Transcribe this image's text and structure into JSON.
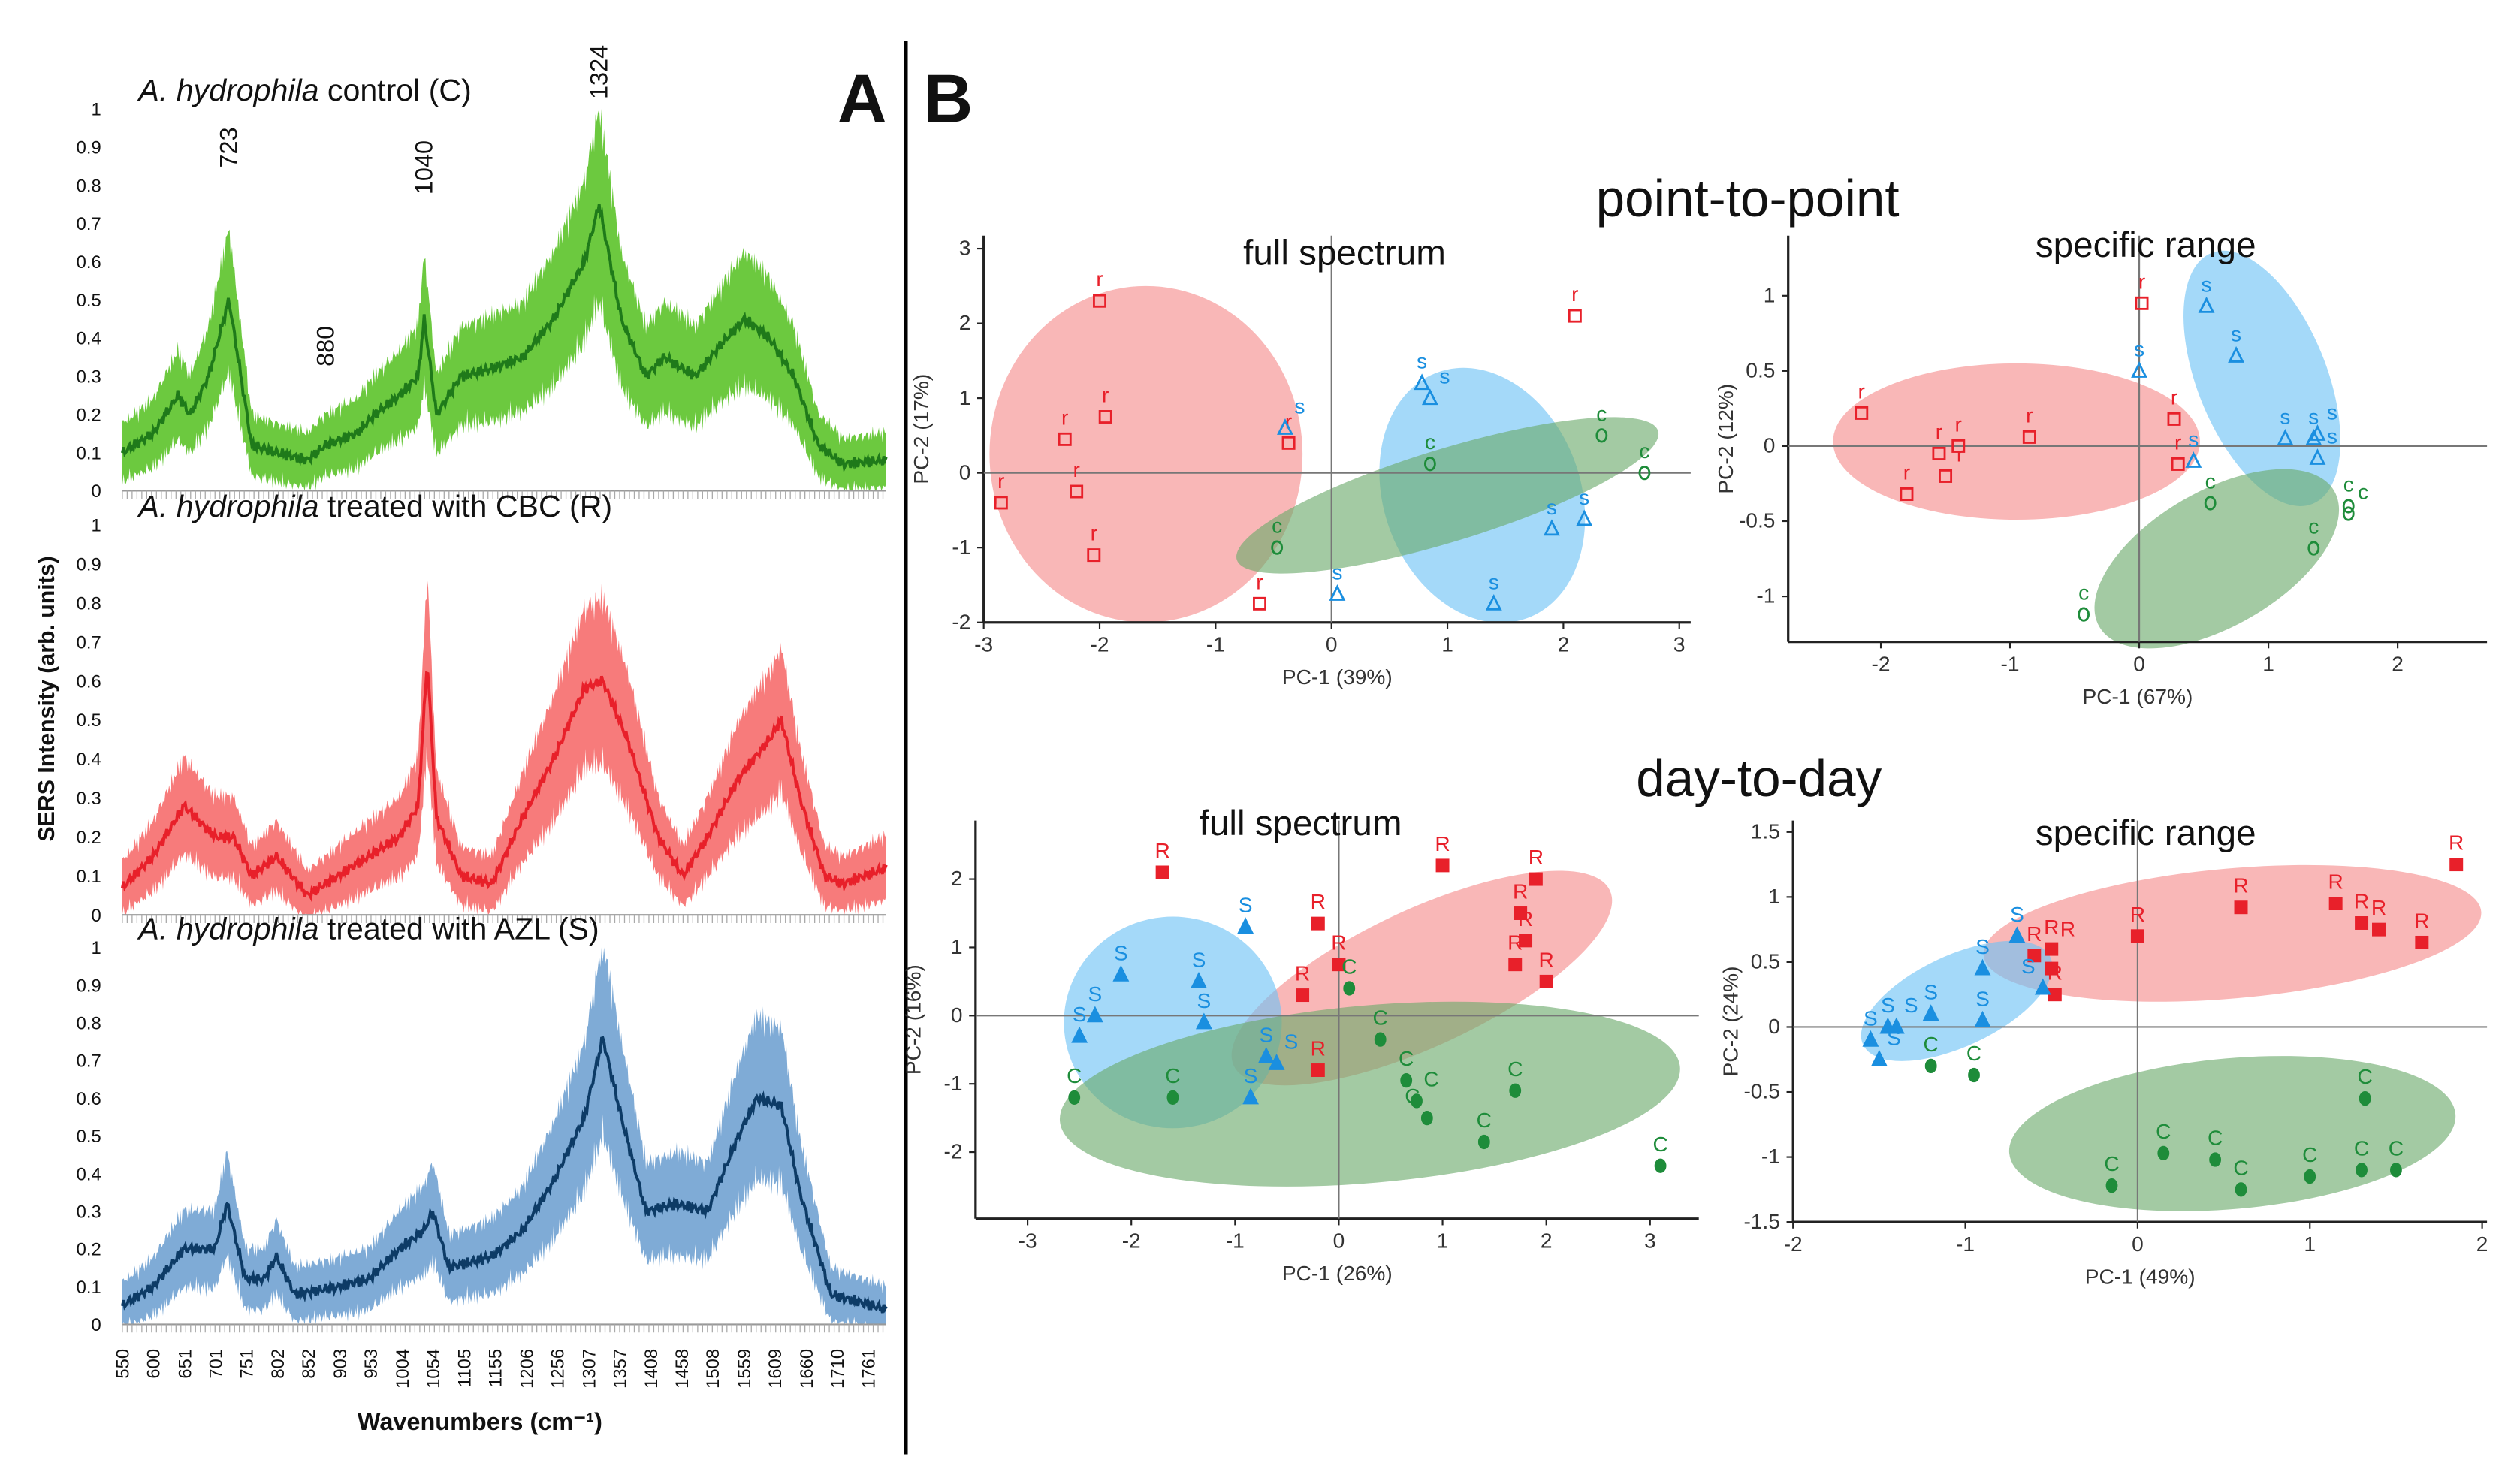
{
  "chart_data": [
    {
      "type": "area",
      "panel": "A",
      "ylabel": "SERS Intensity (arb. units)",
      "xlabel": "Wavenumbers (cm⁻¹)",
      "x_ticks": [
        550,
        600,
        651,
        701,
        751,
        802,
        852,
        903,
        953,
        1004,
        1054,
        1105,
        1155,
        1206,
        1256,
        1307,
        1357,
        1408,
        1458,
        1508,
        1559,
        1609,
        1660,
        1710,
        1761
      ],
      "xlim": [
        550,
        1790
      ],
      "ylim": [
        0,
        1
      ],
      "y_ticks": [
        "0",
        "0.1",
        "0.2",
        "0.3",
        "0.4",
        "0.5",
        "0.6",
        "0.7",
        "0.8",
        "0.9",
        "1"
      ],
      "series": [
        {
          "name": "C",
          "title_italic": "A. hydrophila",
          "title_rest": " control (C)",
          "band_color": "#6cc93f",
          "line_color": "#1f7a1a",
          "peaks": [
            "723",
            "880",
            "1040",
            "1324"
          ],
          "peak_x": [
            723,
            880,
            1040,
            1324
          ],
          "peak_y": [
            0.82,
            0.3,
            0.75,
            1.0
          ],
          "x": [
            550,
            600,
            640,
            660,
            690,
            723,
            760,
            800,
            850,
            880,
            930,
            960,
            1000,
            1030,
            1040,
            1060,
            1100,
            1150,
            1200,
            1250,
            1300,
            1324,
            1360,
            1400,
            1430,
            1480,
            1520,
            1560,
            1600,
            1640,
            1680,
            1720,
            1790
          ],
          "mean": [
            0.1,
            0.15,
            0.25,
            0.2,
            0.3,
            0.5,
            0.12,
            0.1,
            0.08,
            0.12,
            0.15,
            0.2,
            0.25,
            0.3,
            0.45,
            0.2,
            0.3,
            0.32,
            0.35,
            0.45,
            0.6,
            0.75,
            0.45,
            0.3,
            0.35,
            0.3,
            0.38,
            0.45,
            0.4,
            0.3,
            0.12,
            0.07,
            0.08
          ]
        },
        {
          "name": "R",
          "title_italic": "A. hydrophila",
          "title_rest": " treated with CBC (R)",
          "band_color": "#f77b7b",
          "line_color": "#e8202a",
          "x": [
            550,
            600,
            650,
            700,
            730,
            760,
            800,
            850,
            900,
            950,
            1000,
            1030,
            1045,
            1060,
            1100,
            1150,
            1200,
            1250,
            1300,
            1330,
            1370,
            1420,
            1460,
            1500,
            1550,
            1600,
            1620,
            1650,
            1690,
            1720,
            1790
          ],
          "mean": [
            0.07,
            0.15,
            0.28,
            0.2,
            0.2,
            0.1,
            0.15,
            0.05,
            0.1,
            0.15,
            0.2,
            0.28,
            0.65,
            0.25,
            0.1,
            0.08,
            0.25,
            0.4,
            0.58,
            0.6,
            0.45,
            0.2,
            0.1,
            0.2,
            0.35,
            0.45,
            0.5,
            0.3,
            0.1,
            0.08,
            0.12
          ]
        },
        {
          "name": "S",
          "title_italic": "A. hydrophila",
          "title_rest": " treated with AZL (S)",
          "band_color": "#7fabd6",
          "line_color": "#0d3b66",
          "x": [
            550,
            600,
            650,
            700,
            720,
            750,
            780,
            800,
            830,
            900,
            950,
            1000,
            1040,
            1054,
            1080,
            1150,
            1200,
            1250,
            1300,
            1330,
            1360,
            1400,
            1450,
            1500,
            1550,
            1580,
            1620,
            1650,
            1700,
            1790
          ],
          "mean": [
            0.05,
            0.1,
            0.2,
            0.2,
            0.32,
            0.12,
            0.12,
            0.18,
            0.08,
            0.1,
            0.12,
            0.2,
            0.25,
            0.3,
            0.15,
            0.18,
            0.25,
            0.38,
            0.55,
            0.76,
            0.55,
            0.3,
            0.32,
            0.3,
            0.5,
            0.6,
            0.58,
            0.35,
            0.08,
            0.04
          ]
        }
      ]
    },
    {
      "type": "scatter",
      "panel": "B",
      "group": "point-to-point",
      "title": "full spectrum",
      "xlabel": "PC-1 (39%)",
      "ylabel": "PC-2 (17%)",
      "xlim": [
        -3,
        3
      ],
      "ylim": [
        -2,
        3
      ],
      "x_ticks": [
        -3,
        -2,
        -1,
        0,
        1,
        2,
        3
      ],
      "y_ticks": [
        -2,
        -1,
        0,
        1,
        2,
        3
      ],
      "filled": false,
      "groups": [
        {
          "label": "r",
          "marker": "square",
          "color": "#e8202a",
          "points": [
            [
              -2,
              2.3
            ],
            [
              -1.95,
              0.75
            ],
            [
              -2.3,
              0.45
            ],
            [
              -2.2,
              -0.25
            ],
            [
              -2.85,
              -0.4
            ],
            [
              -2.05,
              -1.1
            ],
            [
              -0.62,
              -1.75
            ],
            [
              2.1,
              2.1
            ],
            [
              -0.37,
              0.4
            ]
          ],
          "ellipse": {
            "cx": -1.6,
            "cy": 0.25,
            "rx": 1.35,
            "ry": 2.25,
            "angle": 0,
            "color": "#f58a8a"
          }
        },
        {
          "label": "s",
          "marker": "triangle",
          "color": "#1a8fe0",
          "points": [
            [
              -0.4,
              0.6
            ],
            [
              0.78,
              1.2
            ],
            [
              0.85,
              1.0
            ],
            [
              1.9,
              -0.75
            ],
            [
              2.18,
              -0.62
            ],
            [
              1.4,
              -1.75
            ],
            [
              0.05,
              -1.62
            ]
          ],
          "ellipse": {
            "cx": 1.3,
            "cy": -0.3,
            "rx": 0.85,
            "ry": 1.75,
            "angle": -20,
            "color": "#6cc2f5"
          }
        },
        {
          "label": "c",
          "marker": "circle",
          "color": "#1e8c3a",
          "points": [
            [
              0.85,
              0.12
            ],
            [
              2.33,
              0.5
            ],
            [
              2.7,
              0.0
            ],
            [
              -0.47,
              -1.0
            ]
          ],
          "ellipse": {
            "cx": 1.0,
            "cy": -0.3,
            "rx": 1.9,
            "ry": 0.62,
            "angle": -17,
            "color": "#6aaa6a"
          }
        }
      ]
    },
    {
      "type": "scatter",
      "panel": "B",
      "group": "point-to-point",
      "title": "specific range",
      "xlabel": "PC-1 (67%)",
      "ylabel": "PC-2 (12%)",
      "xlim": [
        -2.7,
        2.7
      ],
      "ylim": [
        -1.3,
        1.4
      ],
      "x_ticks": [
        -2,
        -1,
        0,
        1,
        2
      ],
      "y_ticks": [
        -1,
        -0.5,
        0,
        0.5,
        1
      ],
      "filled": false,
      "groups": [
        {
          "label": "r",
          "marker": "square",
          "color": "#e8202a",
          "points": [
            [
              -2.15,
              0.22
            ],
            [
              -1.8,
              -0.32
            ],
            [
              -1.55,
              -0.05
            ],
            [
              -1.5,
              -0.2
            ],
            [
              -1.4,
              0
            ],
            [
              -0.85,
              0.06
            ],
            [
              0.02,
              0.95
            ],
            [
              0.27,
              0.18
            ],
            [
              0.3,
              -0.12
            ]
          ],
          "ellipse": {
            "cx": -0.95,
            "cy": 0.03,
            "rx": 1.42,
            "ry": 0.52,
            "angle": 0,
            "color": "#f58a8a"
          }
        },
        {
          "label": "s",
          "marker": "triangle",
          "color": "#1a8fe0",
          "points": [
            [
              0.52,
              0.93
            ],
            [
              0.75,
              0.6
            ],
            [
              0,
              0.5
            ],
            [
              0.42,
              -0.1
            ],
            [
              1.13,
              0.05
            ],
            [
              1.35,
              0.05
            ],
            [
              1.38,
              0.08
            ],
            [
              1.38,
              -0.08
            ]
          ],
          "ellipse": {
            "cx": 0.95,
            "cy": 0.45,
            "rx": 0.5,
            "ry": 0.9,
            "angle": -22,
            "color": "#6cc2f5"
          }
        },
        {
          "label": "c",
          "marker": "circle",
          "color": "#1e8c3a",
          "points": [
            [
              0.55,
              -0.38
            ],
            [
              1.35,
              -0.68
            ],
            [
              1.62,
              -0.4
            ],
            [
              1.62,
              -0.45
            ],
            [
              -0.43,
              -1.12
            ]
          ],
          "ellipse": {
            "cx": 0.6,
            "cy": -0.75,
            "rx": 1.05,
            "ry": 0.45,
            "angle": -30,
            "color": "#6aaa6a"
          }
        }
      ]
    },
    {
      "type": "scatter",
      "panel": "B",
      "group": "day-to-day",
      "title": "full spectrum",
      "xlabel": "PC-1 (26%)",
      "ylabel": "PC-2 (16%)",
      "xlim": [
        -3.5,
        3.3
      ],
      "ylim": [
        -2.6,
        2.7
      ],
      "x_ticks": [
        -3,
        -2,
        -1,
        0,
        1,
        2,
        3
      ],
      "y_ticks": [
        -2,
        -1,
        0,
        1,
        2
      ],
      "filled": true,
      "groups": [
        {
          "label": "R",
          "marker": "square",
          "color": "#e8202a",
          "points": [
            [
              -1.7,
              2.1
            ],
            [
              -0.2,
              1.35
            ],
            [
              0.0,
              0.75
            ],
            [
              -0.35,
              0.3
            ],
            [
              -0.2,
              -0.8
            ],
            [
              1.0,
              2.2
            ],
            [
              1.9,
              2.0
            ],
            [
              1.75,
              1.5
            ],
            [
              1.8,
              1.1
            ],
            [
              1.7,
              0.75
            ],
            [
              2.0,
              0.5
            ]
          ],
          "ellipse": {
            "cx": 0.8,
            "cy": 0.55,
            "rx": 2.0,
            "ry": 1.0,
            "angle": -25,
            "color": "#f58a8a"
          }
        },
        {
          "label": "S",
          "marker": "triangle",
          "color": "#1a8fe0",
          "points": [
            [
              -2.1,
              0.6
            ],
            [
              -2.5,
              -0.3
            ],
            [
              -2.35,
              0
            ],
            [
              -1.35,
              0.5
            ],
            [
              -1.3,
              -0.1
            ],
            [
              -0.9,
              1.3
            ],
            [
              -0.7,
              -0.6
            ],
            [
              -0.6,
              -0.7
            ],
            [
              -0.85,
              -1.2
            ]
          ],
          "ellipse": {
            "cx": -1.6,
            "cy": -0.1,
            "rx": 1.05,
            "ry": 1.55,
            "angle": 0,
            "color": "#6cc2f5"
          }
        },
        {
          "label": "C",
          "marker": "circle",
          "color": "#1e8c3a",
          "points": [
            [
              -2.55,
              -1.2
            ],
            [
              -1.6,
              -1.2
            ],
            [
              0.1,
              0.4
            ],
            [
              0.4,
              -0.35
            ],
            [
              0.65,
              -0.95
            ],
            [
              0.75,
              -1.25
            ],
            [
              0.85,
              -1.5
            ],
            [
              1.4,
              -1.85
            ],
            [
              1.7,
              -1.1
            ],
            [
              3.1,
              -2.2
            ]
          ],
          "ellipse": {
            "cx": 0.3,
            "cy": -1.15,
            "rx": 3.0,
            "ry": 1.3,
            "angle": -5,
            "color": "#6aaa6a"
          }
        }
      ]
    },
    {
      "type": "scatter",
      "panel": "B",
      "group": "day-to-day",
      "title": "specific range",
      "xlabel": "PC-1 (49%)",
      "ylabel": "PC-2 (24%)",
      "xlim": [
        -2,
        2
      ],
      "ylim": [
        -1.5,
        1.5
      ],
      "x_ticks": [
        -2,
        -1,
        0,
        1,
        2
      ],
      "y_ticks": [
        -1.5,
        -1,
        -0.5,
        0,
        0.5,
        1,
        1.5
      ],
      "filled": true,
      "groups": [
        {
          "label": "R",
          "marker": "square",
          "color": "#e8202a",
          "points": [
            [
              -0.6,
              0.55
            ],
            [
              -0.5,
              0.6
            ],
            [
              -0.5,
              0.45
            ],
            [
              -0.48,
              0.25
            ],
            [
              0.0,
              0.7
            ],
            [
              0.6,
              0.92
            ],
            [
              1.15,
              0.95
            ],
            [
              1.3,
              0.8
            ],
            [
              1.4,
              0.75
            ],
            [
              1.65,
              0.65
            ],
            [
              1.85,
              1.25
            ]
          ],
          "ellipse": {
            "cx": 0.55,
            "cy": 0.72,
            "rx": 1.45,
            "ry": 0.5,
            "angle": -5,
            "color": "#f58a8a"
          }
        },
        {
          "label": "S",
          "marker": "triangle",
          "color": "#1a8fe0",
          "points": [
            [
              -1.55,
              -0.1
            ],
            [
              -1.5,
              -0.25
            ],
            [
              -1.45,
              0.0
            ],
            [
              -1.4,
              0.0
            ],
            [
              -1.2,
              0.1
            ],
            [
              -0.9,
              0.45
            ],
            [
              -0.9,
              0.05
            ],
            [
              -0.7,
              0.7
            ],
            [
              -0.55,
              0.3
            ]
          ],
          "ellipse": {
            "cx": -1.05,
            "cy": 0.2,
            "rx": 0.6,
            "ry": 0.35,
            "angle": -25,
            "color": "#6cc2f5"
          }
        },
        {
          "label": "C",
          "marker": "circle",
          "color": "#1e8c3a",
          "points": [
            [
              -1.2,
              -0.3
            ],
            [
              -0.95,
              -0.37
            ],
            [
              -0.15,
              -1.22
            ],
            [
              0.15,
              -0.97
            ],
            [
              0.45,
              -1.02
            ],
            [
              0.6,
              -1.25
            ],
            [
              1.0,
              -1.15
            ],
            [
              1.3,
              -1.1
            ],
            [
              1.32,
              -0.55
            ],
            [
              1.5,
              -1.1
            ]
          ],
          "ellipse": {
            "cx": 0.55,
            "cy": -0.82,
            "rx": 1.3,
            "ry": 0.58,
            "angle": -5,
            "color": "#6aaa6a"
          }
        }
      ]
    }
  ],
  "labels": {
    "panel_a": "A",
    "panel_b": "B",
    "point_to_point": "point-to-point",
    "day_to_day": "day-to-day"
  }
}
